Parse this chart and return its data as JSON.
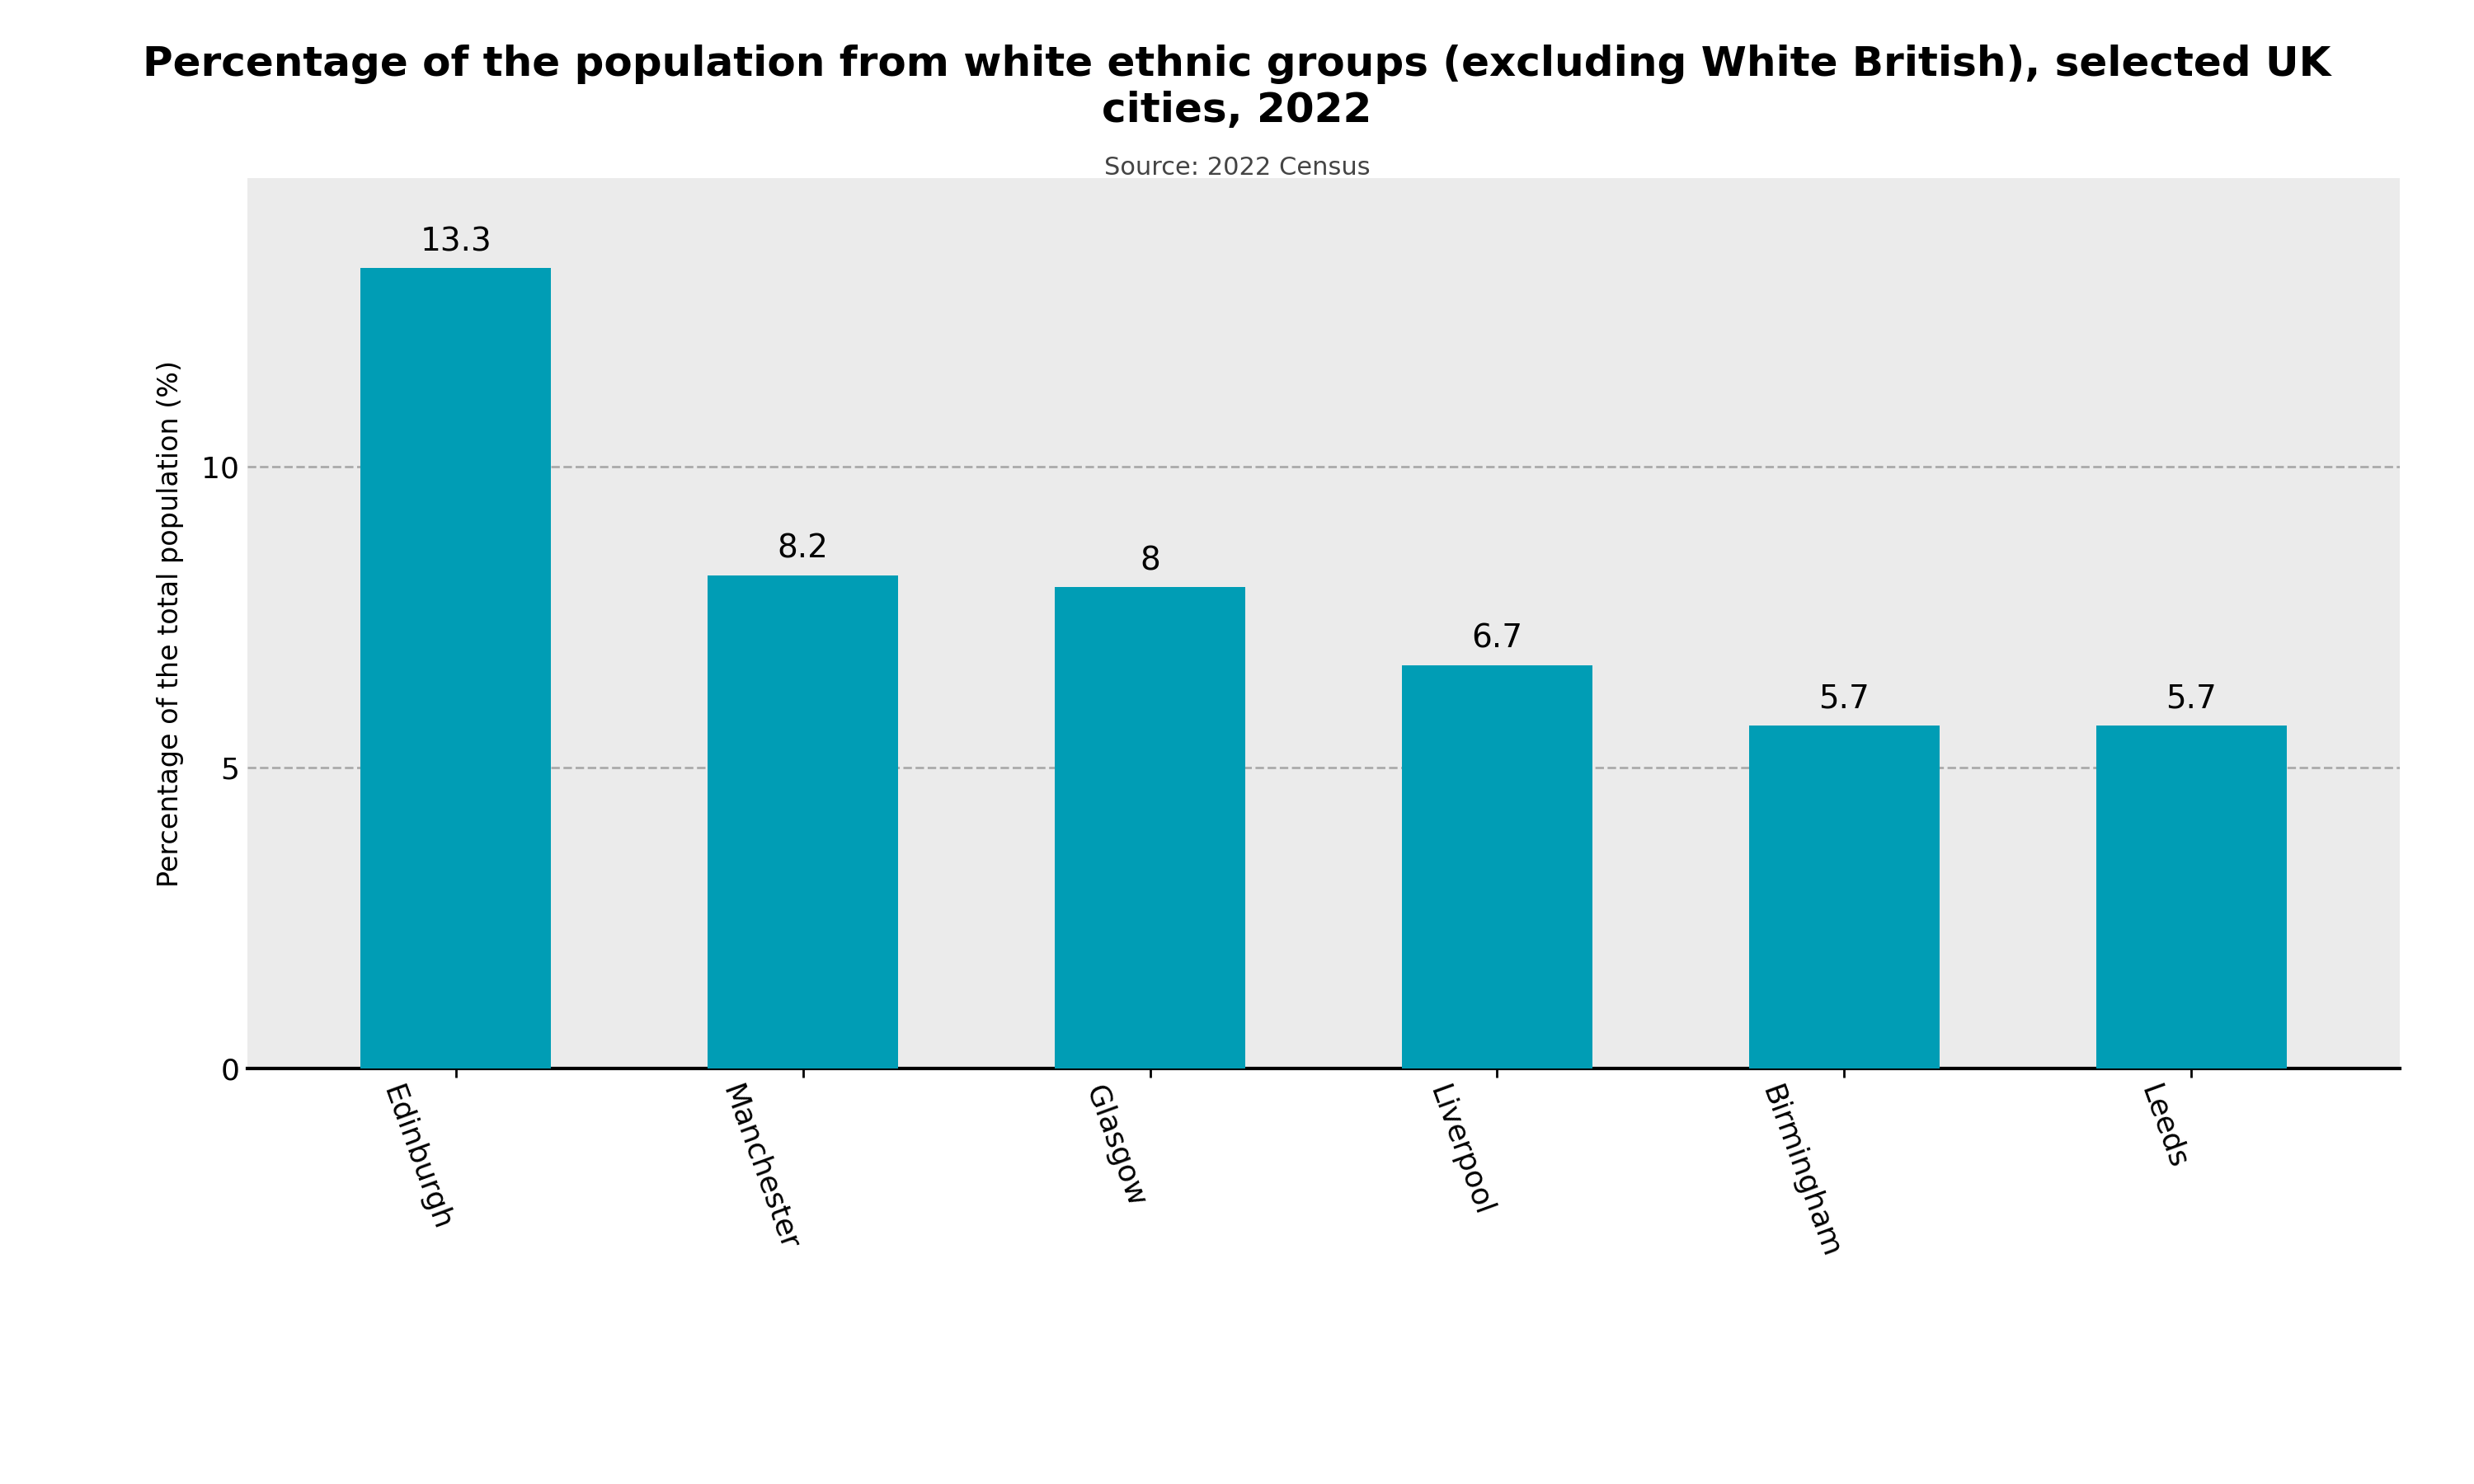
{
  "title": "Percentage of the population from white ethnic groups (excluding White British), selected UK\ncities, 2022",
  "subtitle": "Source: 2022 Census",
  "categories": [
    "Edinburgh",
    "Manchester",
    "Glasgow",
    "Liverpool",
    "Birmingham",
    "Leeds"
  ],
  "values": [
    13.3,
    8.2,
    8.0,
    6.7,
    5.7,
    5.7
  ],
  "bar_color": "#009DB5",
  "ylabel": "Percentage of the total population (%)",
  "yticks": [
    0,
    5,
    10
  ],
  "ylim": [
    0,
    14.8
  ],
  "background_color": "#EBEBEB",
  "figure_background": "#FFFFFF",
  "title_fontsize": 36,
  "subtitle_fontsize": 22,
  "ylabel_fontsize": 24,
  "tick_fontsize": 26,
  "bar_label_fontsize": 28,
  "xlabel_rotation": -70,
  "bar_width": 0.55,
  "grid_color": "#AAAAAA",
  "grid_linewidth": 2.0,
  "spine_linewidth": 3.0
}
